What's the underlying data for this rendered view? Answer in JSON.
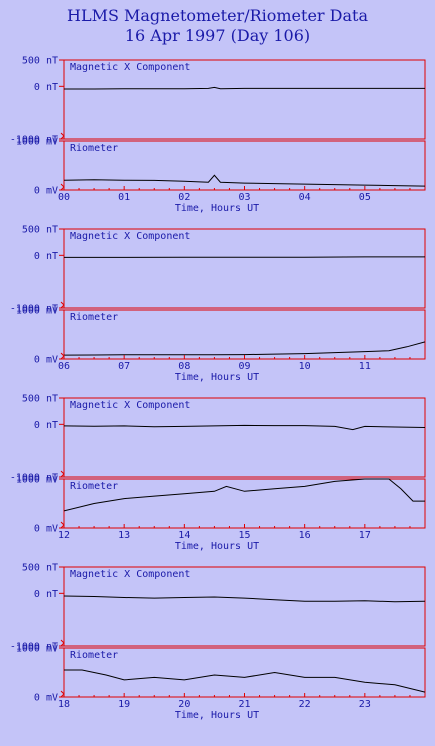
{
  "title": "HLMS Magnetometer/Riometer Data",
  "subtitle": "16 Apr 1997 (Day 106)",
  "colors": {
    "background": "#c4c4f8",
    "frame": "#e00000",
    "text": "#1a1aa8",
    "trace": "#000000"
  },
  "chart_data": [
    {
      "type": "line",
      "title": "",
      "xlabel": "Time, Hours UT",
      "x_ticks": [
        "00",
        "01",
        "02",
        "03",
        "04",
        "05"
      ],
      "xlim": [
        0,
        6
      ],
      "subplots": [
        {
          "name": "Magnetic X Component",
          "unit": "nT",
          "ylim": [
            -1000,
            500
          ],
          "y_ticks": [
            "500 nT",
            "0 nT",
            "-1000 nT"
          ],
          "x": [
            0,
            0.5,
            1,
            1.5,
            2,
            2.4,
            2.5,
            2.6,
            3,
            3.5,
            4,
            4.5,
            5,
            5.5,
            6
          ],
          "y": [
            -50,
            -50,
            -45,
            -45,
            -45,
            -40,
            -20,
            -45,
            -40,
            -40,
            -40,
            -40,
            -40,
            -40,
            -40
          ]
        },
        {
          "name": "Riometer",
          "unit": "mV",
          "ylim": [
            0,
            1000
          ],
          "y_ticks": [
            "1000 mV",
            "0 mV"
          ],
          "x": [
            0,
            0.5,
            1,
            1.5,
            2,
            2.4,
            2.5,
            2.6,
            3,
            3.5,
            4,
            4.5,
            5,
            5.5,
            6
          ],
          "y": [
            200,
            210,
            200,
            195,
            180,
            160,
            300,
            160,
            140,
            130,
            120,
            110,
            100,
            90,
            80
          ]
        }
      ]
    },
    {
      "type": "line",
      "title": "",
      "xlabel": "Time, Hours UT",
      "x_ticks": [
        "06",
        "07",
        "08",
        "09",
        "10",
        "11"
      ],
      "xlim": [
        6,
        12
      ],
      "subplots": [
        {
          "name": "Magnetic X Component",
          "unit": "nT",
          "ylim": [
            -1000,
            500
          ],
          "y_ticks": [
            "500 nT",
            "0 nT",
            "-1000 nT"
          ],
          "x": [
            6,
            7,
            8,
            9,
            10,
            11,
            12
          ],
          "y": [
            -40,
            -40,
            -35,
            -35,
            -35,
            -30,
            -30
          ]
        },
        {
          "name": "Riometer",
          "unit": "mV",
          "ylim": [
            0,
            1000
          ],
          "y_ticks": [
            "1000 mV",
            "0 mV"
          ],
          "x": [
            6,
            6.5,
            7,
            7.5,
            8,
            8.5,
            9,
            9.5,
            10,
            10.5,
            11,
            11.4,
            11.7,
            12
          ],
          "y": [
            80,
            82,
            85,
            85,
            85,
            85,
            90,
            100,
            110,
            130,
            150,
            170,
            250,
            350
          ]
        }
      ]
    },
    {
      "type": "line",
      "title": "",
      "xlabel": "Time, Hours UT",
      "x_ticks": [
        "12",
        "13",
        "14",
        "15",
        "16",
        "17"
      ],
      "xlim": [
        12,
        18
      ],
      "subplots": [
        {
          "name": "Magnetic X Component",
          "unit": "nT",
          "ylim": [
            -1000,
            500
          ],
          "y_ticks": [
            "500 nT",
            "0 nT",
            "-1000 nT"
          ],
          "x": [
            12,
            12.5,
            13,
            13.5,
            14,
            14.5,
            15,
            15.5,
            16,
            16.5,
            16.8,
            17,
            17.5,
            18
          ],
          "y": [
            -30,
            -35,
            -30,
            -45,
            -40,
            -30,
            -20,
            -25,
            -25,
            -40,
            -100,
            -40,
            -50,
            -60
          ]
        },
        {
          "name": "Riometer",
          "unit": "mV",
          "ylim": [
            0,
            1000
          ],
          "y_ticks": [
            "1000 mV",
            "0 mV"
          ],
          "x": [
            12,
            12.5,
            13,
            13.5,
            14,
            14.5,
            14.7,
            15,
            15.5,
            16,
            16.5,
            17,
            17.4,
            17.6,
            17.8,
            18
          ],
          "y": [
            350,
            500,
            600,
            650,
            700,
            750,
            850,
            750,
            800,
            850,
            950,
            1000,
            1000,
            800,
            550,
            550
          ]
        }
      ]
    },
    {
      "type": "line",
      "title": "",
      "xlabel": "Time, Hours UT",
      "x_ticks": [
        "18",
        "19",
        "20",
        "21",
        "22",
        "23"
      ],
      "xlim": [
        18,
        24
      ],
      "subplots": [
        {
          "name": "Magnetic X Component",
          "unit": "nT",
          "ylim": [
            -1000,
            500
          ],
          "y_ticks": [
            "500 nT",
            "0 nT",
            "-1000 nT"
          ],
          "x": [
            18,
            18.5,
            19,
            19.5,
            20,
            20.5,
            21,
            21.5,
            22,
            22.5,
            23,
            23.5,
            24
          ],
          "y": [
            -50,
            -60,
            -80,
            -90,
            -80,
            -70,
            -90,
            -120,
            -150,
            -150,
            -140,
            -160,
            -150
          ]
        },
        {
          "name": "Riometer",
          "unit": "mV",
          "ylim": [
            0,
            1000
          ],
          "y_ticks": [
            "1000 mV",
            "0 mV"
          ],
          "x": [
            18,
            18.3,
            18.7,
            19,
            19.5,
            20,
            20.5,
            21,
            21.5,
            22,
            22.5,
            23,
            23.5,
            24
          ],
          "y": [
            550,
            550,
            450,
            350,
            400,
            350,
            450,
            400,
            500,
            400,
            400,
            300,
            250,
            100
          ]
        }
      ]
    }
  ]
}
